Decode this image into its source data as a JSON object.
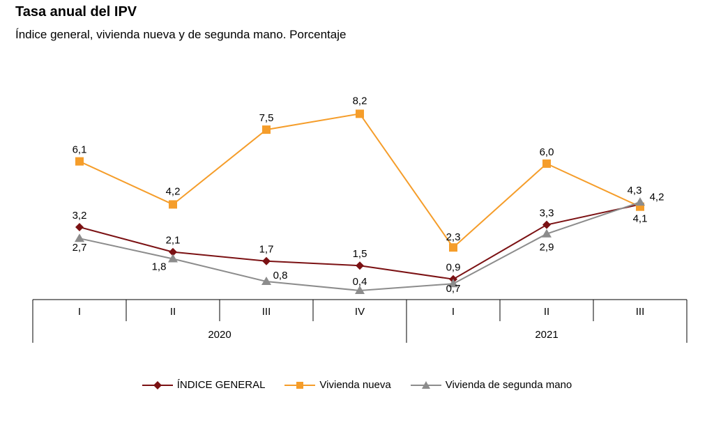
{
  "title": "Tasa anual del IPV",
  "subtitle": "Índice general, vivienda nueva y de segunda mano. Porcentaje",
  "chart_data": {
    "type": "line",
    "categories": [
      "I",
      "II",
      "III",
      "IV",
      "I",
      "II",
      "III"
    ],
    "groups": [
      {
        "label": "2020",
        "span": [
          0,
          3
        ]
      },
      {
        "label": "2021",
        "span": [
          4,
          6
        ]
      }
    ],
    "ylim": [
      0,
      9
    ],
    "grid": false,
    "legend_position": "bottom",
    "series": [
      {
        "name": "ÍNDICE GENERAL",
        "color": "#7b1113",
        "marker": "diamond",
        "values": [
          3.2,
          2.1,
          1.7,
          1.5,
          0.9,
          3.3,
          4.2
        ],
        "labels": [
          "3,2",
          "2,1",
          "1,7",
          "1,5",
          "0,9",
          "3,3",
          "4,2"
        ]
      },
      {
        "name": "Vivienda nueva",
        "color": "#f59d2a",
        "marker": "square",
        "values": [
          6.1,
          4.2,
          7.5,
          8.2,
          2.3,
          6.0,
          4.1
        ],
        "labels": [
          "6,1",
          "4,2",
          "7,5",
          "8,2",
          "2,3",
          "6,0",
          "4,1"
        ]
      },
      {
        "name": "Vivienda de segunda mano",
        "color": "#8c8c8c",
        "marker": "triangle",
        "values": [
          2.7,
          1.8,
          0.8,
          0.4,
          0.7,
          2.9,
          4.3
        ],
        "labels": [
          "2,7",
          "1,8",
          "0,8",
          "0,4",
          "0,7",
          "2,9",
          "4,3"
        ]
      }
    ]
  }
}
